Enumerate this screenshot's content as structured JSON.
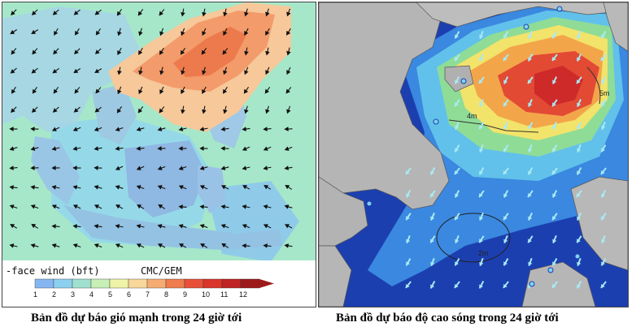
{
  "wind_map": {
    "legend_title": "-face wind (bft)",
    "legend_source": "CMC/GEM",
    "scale_labels": [
      "1",
      "2",
      "3",
      "4",
      "5",
      "6",
      "7",
      "8",
      "9",
      "10",
      "11",
      "12"
    ],
    "scale_colors": [
      "#86b6f2",
      "#8cd0ef",
      "#9fe0cf",
      "#c8efb6",
      "#eef3a8",
      "#f8d79a",
      "#f5ac72",
      "#ef7c4c",
      "#e8503a",
      "#d9352a",
      "#c02323",
      "#9e1a1a"
    ]
  },
  "wave_map": {
    "contour_labels": [
      "4m",
      "2m",
      "5m"
    ],
    "colors": {
      "land": "#b9b9b9",
      "deep": "#1c3fb0",
      "low": "#3a88e0",
      "mid": "#61c1ea",
      "green": "#8fdc97",
      "yellow": "#f2e36a",
      "orange": "#f3a54a",
      "red": "#e24a34",
      "peak": "#cf2a2a"
    }
  },
  "captions": {
    "left": "Bản đồ dự báo gió mạnh trong 24 giờ tới",
    "right": "Bản đồ dự báo độ cao sóng trong 24 giờ tới"
  }
}
